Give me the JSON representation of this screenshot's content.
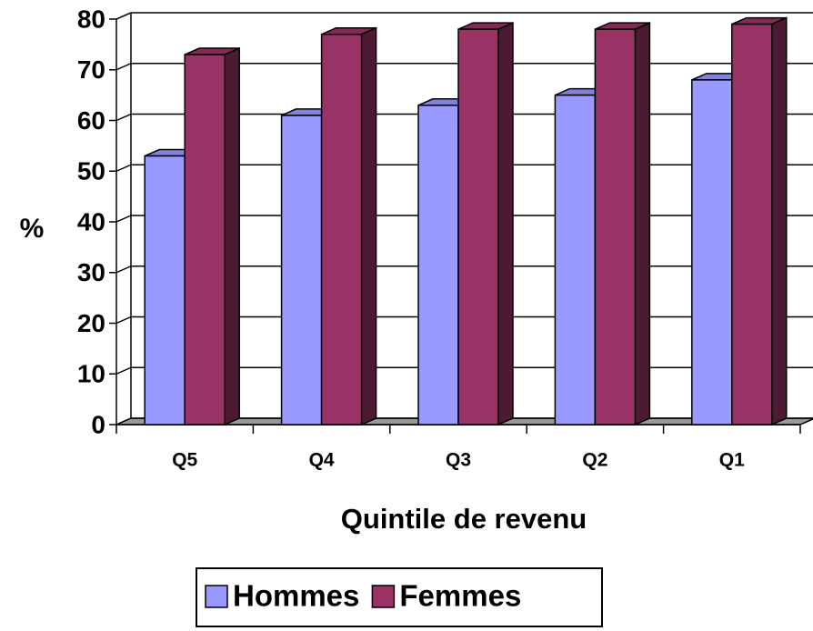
{
  "chart_data": {
    "type": "bar3d",
    "y_label": "%",
    "x_label": "Quintile de revenu",
    "categories": [
      "Q5",
      "Q4",
      "Q3",
      "Q2",
      "Q1"
    ],
    "series": [
      {
        "name": "Hommes",
        "color": "#9999ff",
        "values": [
          53,
          61,
          63,
          65,
          68
        ]
      },
      {
        "name": "Femmes",
        "color": "#993366",
        "values": [
          73,
          77,
          78,
          78,
          79
        ]
      }
    ],
    "ylim": [
      0,
      80
    ],
    "yticks": [
      0,
      10,
      20,
      30,
      40,
      50,
      60,
      70,
      80
    ],
    "grid": true,
    "legend": "bottom"
  }
}
